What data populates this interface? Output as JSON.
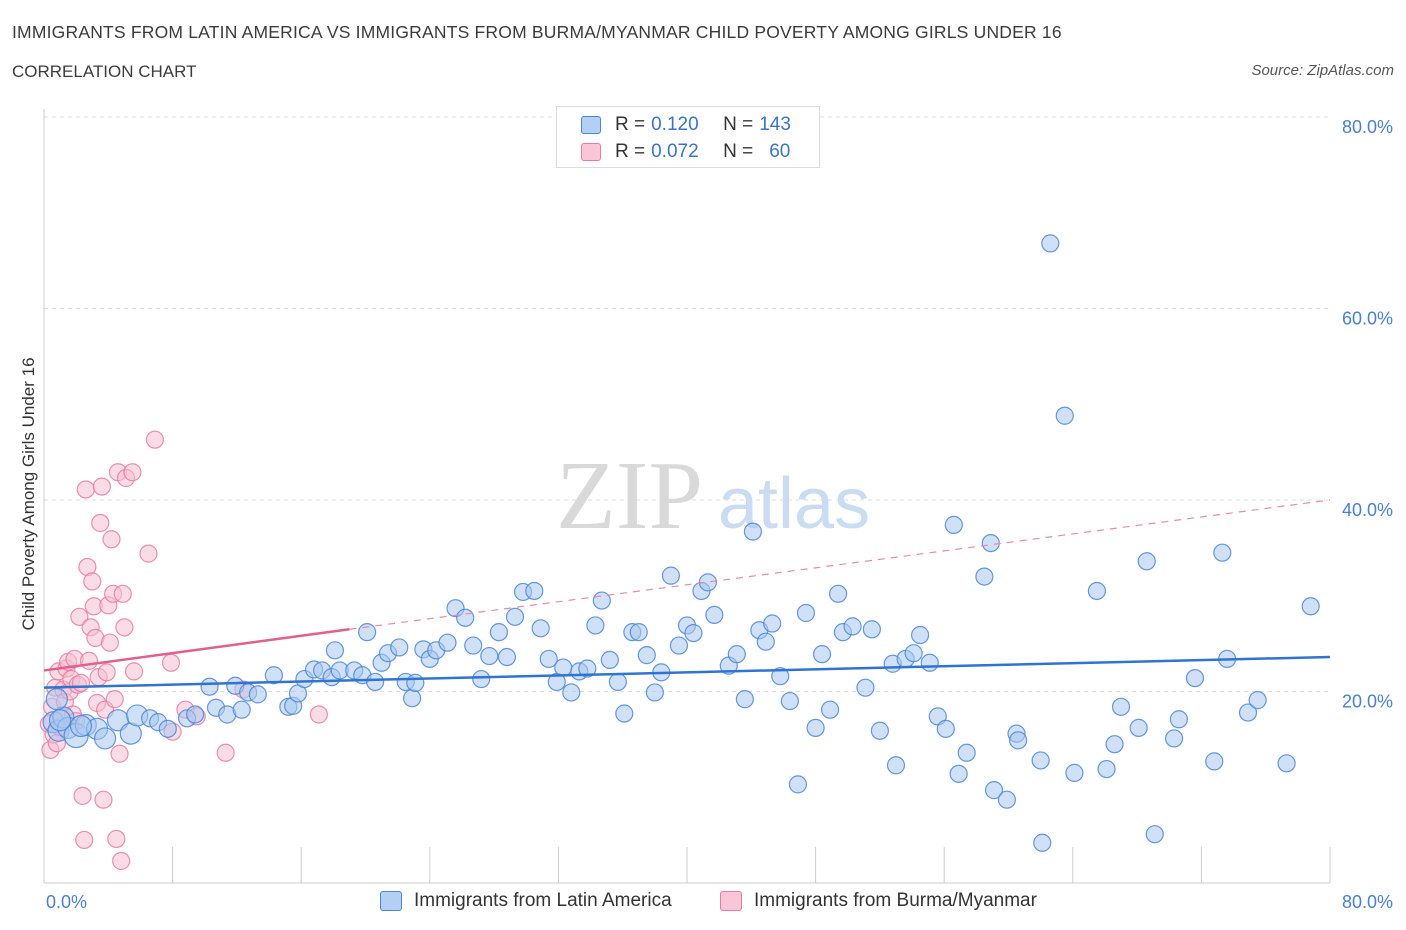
{
  "header": {
    "title": "IMMIGRANTS FROM LATIN AMERICA VS IMMIGRANTS FROM BURMA/MYANMAR CHILD POVERTY AMONG GIRLS UNDER 16",
    "subtitle": "CORRELATION CHART",
    "source": "Source: ZipAtlas.com"
  },
  "watermark": {
    "part1": "ZIP",
    "part2": "atlas"
  },
  "legend": {
    "rows": [
      {
        "r_label": "R =",
        "r_value": "0.120",
        "n_label": "N =",
        "n_value": "143"
      },
      {
        "r_label": "R =",
        "r_value": "0.072",
        "n_label": "N =",
        "n_value": "60"
      }
    ]
  },
  "colors": {
    "blue": "#4a86d8",
    "blue_fill": "#aac8f0",
    "pink": "#e87ca0",
    "pink_fill": "#f6c0d2",
    "axis_text": "#4a7fd0",
    "grid": "#d8d8d8"
  },
  "chart_data": {
    "type": "scatter",
    "title": "IMMIGRANTS FROM LATIN AMERICA VS IMMIGRANTS FROM BURMA/MYANMAR CHILD POVERTY AMONG GIRLS UNDER 16",
    "xlabel": "",
    "ylabel": "Child Poverty Among Girls Under 16",
    "xlim": [
      0,
      80
    ],
    "ylim": [
      0,
      80
    ],
    "x_tick_labels": [
      "0.0%",
      "80.0%"
    ],
    "y_ticks": [
      20,
      40,
      60,
      80
    ],
    "y_tick_labels": [
      "20.0%",
      "40.0%",
      "60.0%",
      "80.0%"
    ],
    "grid": true,
    "legend_position": "bottom",
    "series": [
      {
        "name": "Immigrants from Latin America",
        "color": "#4a86d8",
        "R": 0.12,
        "N": 143,
        "trend": {
          "x": [
            0,
            80
          ],
          "y": [
            20.4,
            23.6
          ]
        },
        "points": [
          [
            0.6,
            16.8
          ],
          [
            0.9,
            15.9
          ],
          [
            1.2,
            17.3
          ],
          [
            1.5,
            16.2
          ],
          [
            2.0,
            15.4
          ],
          [
            2.6,
            16.5
          ],
          [
            3.3,
            16.1
          ],
          [
            3.8,
            15.1
          ],
          [
            4.6,
            17.0
          ],
          [
            5.4,
            15.6
          ],
          [
            5.8,
            17.5
          ],
          [
            6.6,
            17.2
          ],
          [
            7.1,
            16.8
          ],
          [
            7.7,
            16.1
          ],
          [
            8.9,
            17.2
          ],
          [
            9.4,
            17.6
          ],
          [
            10.3,
            20.5
          ],
          [
            10.7,
            18.3
          ],
          [
            11.4,
            17.6
          ],
          [
            11.9,
            20.6
          ],
          [
            12.3,
            18.1
          ],
          [
            12.7,
            19.9
          ],
          [
            13.3,
            19.7
          ],
          [
            14.3,
            21.7
          ],
          [
            15.2,
            18.4
          ],
          [
            15.5,
            18.5
          ],
          [
            15.8,
            19.8
          ],
          [
            16.2,
            21.3
          ],
          [
            16.8,
            22.3
          ],
          [
            17.3,
            22.2
          ],
          [
            17.9,
            21.5
          ],
          [
            18.1,
            24.3
          ],
          [
            18.4,
            22.2
          ],
          [
            19.3,
            22.2
          ],
          [
            19.8,
            21.7
          ],
          [
            20.1,
            26.2
          ],
          [
            20.6,
            21.0
          ],
          [
            21.0,
            23.0
          ],
          [
            21.4,
            24.0
          ],
          [
            22.1,
            24.6
          ],
          [
            22.5,
            21.0
          ],
          [
            22.9,
            19.3
          ],
          [
            23.1,
            20.9
          ],
          [
            23.6,
            24.4
          ],
          [
            24.0,
            23.4
          ],
          [
            24.4,
            24.3
          ],
          [
            25.1,
            25.1
          ],
          [
            25.6,
            28.7
          ],
          [
            26.2,
            27.7
          ],
          [
            26.7,
            24.8
          ],
          [
            27.2,
            21.3
          ],
          [
            27.7,
            23.7
          ],
          [
            28.3,
            26.2
          ],
          [
            28.8,
            23.6
          ],
          [
            29.3,
            27.8
          ],
          [
            29.8,
            30.4
          ],
          [
            30.5,
            30.5
          ],
          [
            30.9,
            26.6
          ],
          [
            31.4,
            23.4
          ],
          [
            31.9,
            21.0
          ],
          [
            32.3,
            22.5
          ],
          [
            32.8,
            19.9
          ],
          [
            33.3,
            22.1
          ],
          [
            33.8,
            22.4
          ],
          [
            34.3,
            26.9
          ],
          [
            34.7,
            29.5
          ],
          [
            35.2,
            23.3
          ],
          [
            35.7,
            21.0
          ],
          [
            36.1,
            17.7
          ],
          [
            36.6,
            26.2
          ],
          [
            37.0,
            26.2
          ],
          [
            37.5,
            23.8
          ],
          [
            38.0,
            19.9
          ],
          [
            38.4,
            22.0
          ],
          [
            39.0,
            32.1
          ],
          [
            39.5,
            24.8
          ],
          [
            40.0,
            26.9
          ],
          [
            40.4,
            26.1
          ],
          [
            40.9,
            30.5
          ],
          [
            41.3,
            31.4
          ],
          [
            41.7,
            28.0
          ],
          [
            42.6,
            22.7
          ],
          [
            43.1,
            23.9
          ],
          [
            43.6,
            19.2
          ],
          [
            44.1,
            36.7
          ],
          [
            44.5,
            26.4
          ],
          [
            44.9,
            25.2
          ],
          [
            45.3,
            27.1
          ],
          [
            45.8,
            21.6
          ],
          [
            46.4,
            19.0
          ],
          [
            46.9,
            10.3
          ],
          [
            47.4,
            28.2
          ],
          [
            48.0,
            16.2
          ],
          [
            48.4,
            23.9
          ],
          [
            48.9,
            18.1
          ],
          [
            49.4,
            30.2
          ],
          [
            49.7,
            26.2
          ],
          [
            50.3,
            26.8
          ],
          [
            51.1,
            20.4
          ],
          [
            51.5,
            26.5
          ],
          [
            52.0,
            15.9
          ],
          [
            52.8,
            22.9
          ],
          [
            53.0,
            12.3
          ],
          [
            53.6,
            23.4
          ],
          [
            54.1,
            24.0
          ],
          [
            54.5,
            25.9
          ],
          [
            55.1,
            23.0
          ],
          [
            55.6,
            17.4
          ],
          [
            56.1,
            16.1
          ],
          [
            56.6,
            37.4
          ],
          [
            56.9,
            11.4
          ],
          [
            57.4,
            13.6
          ],
          [
            58.5,
            32.0
          ],
          [
            58.9,
            35.5
          ],
          [
            59.1,
            9.7
          ],
          [
            59.9,
            8.7
          ],
          [
            60.5,
            15.6
          ],
          [
            60.6,
            14.9
          ],
          [
            62.0,
            12.8
          ],
          [
            62.1,
            4.2
          ],
          [
            62.6,
            66.8
          ],
          [
            63.5,
            48.8
          ],
          [
            64.1,
            11.5
          ],
          [
            65.5,
            30.5
          ],
          [
            66.1,
            11.9
          ],
          [
            66.6,
            14.5
          ],
          [
            67.0,
            18.4
          ],
          [
            68.1,
            16.2
          ],
          [
            68.6,
            33.6
          ],
          [
            69.1,
            5.1
          ],
          [
            70.3,
            15.1
          ],
          [
            70.6,
            17.1
          ],
          [
            71.6,
            21.4
          ],
          [
            72.8,
            12.7
          ],
          [
            73.3,
            34.5
          ],
          [
            73.6,
            23.4
          ],
          [
            74.9,
            17.8
          ],
          [
            75.5,
            19.1
          ],
          [
            77.3,
            12.5
          ],
          [
            78.8,
            28.9
          ],
          [
            1.0,
            17.0
          ],
          [
            2.3,
            16.4
          ],
          [
            0.8,
            19.2
          ]
        ]
      },
      {
        "name": "Immigrants from Burma/Myanmar",
        "color": "#e87ca0",
        "R": 0.072,
        "N": 60,
        "trend": {
          "x": [
            0,
            19
          ],
          "y": [
            22.2,
            26.5
          ]
        },
        "trend_extension": {
          "x": [
            19,
            80
          ],
          "y": [
            26.5,
            40.0
          ]
        },
        "points": [
          [
            0.3,
            16.6
          ],
          [
            0.4,
            13.9
          ],
          [
            0.5,
            18.4
          ],
          [
            0.6,
            15.5
          ],
          [
            0.7,
            20.4
          ],
          [
            0.8,
            14.6
          ],
          [
            0.9,
            22.1
          ],
          [
            1.0,
            16.3
          ],
          [
            1.1,
            17.4
          ],
          [
            1.2,
            20.2
          ],
          [
            1.3,
            18.9
          ],
          [
            1.4,
            22.4
          ],
          [
            1.5,
            23.1
          ],
          [
            1.6,
            20.0
          ],
          [
            1.7,
            21.3
          ],
          [
            1.8,
            17.6
          ],
          [
            1.9,
            23.4
          ],
          [
            2.0,
            16.9
          ],
          [
            2.1,
            20.7
          ],
          [
            2.2,
            27.8
          ],
          [
            2.3,
            20.9
          ],
          [
            2.4,
            9.1
          ],
          [
            2.5,
            4.5
          ],
          [
            2.6,
            41.1
          ],
          [
            2.7,
            33.0
          ],
          [
            2.8,
            23.2
          ],
          [
            2.9,
            26.7
          ],
          [
            3.0,
            31.5
          ],
          [
            3.1,
            28.9
          ],
          [
            3.2,
            25.6
          ],
          [
            3.3,
            18.8
          ],
          [
            3.4,
            21.5
          ],
          [
            3.5,
            37.6
          ],
          [
            3.6,
            41.4
          ],
          [
            3.7,
            8.7
          ],
          [
            3.8,
            18.1
          ],
          [
            3.9,
            22.0
          ],
          [
            4.0,
            29.0
          ],
          [
            4.1,
            25.1
          ],
          [
            4.2,
            35.9
          ],
          [
            4.3,
            30.2
          ],
          [
            4.4,
            19.2
          ],
          [
            4.5,
            4.6
          ],
          [
            4.6,
            42.9
          ],
          [
            4.7,
            13.5
          ],
          [
            4.8,
            2.3
          ],
          [
            4.9,
            30.2
          ],
          [
            5.0,
            26.7
          ],
          [
            5.1,
            42.3
          ],
          [
            5.5,
            42.9
          ],
          [
            5.6,
            22.1
          ],
          [
            6.5,
            34.4
          ],
          [
            6.9,
            46.3
          ],
          [
            7.9,
            23.0
          ],
          [
            8.0,
            15.8
          ],
          [
            8.8,
            18.1
          ],
          [
            9.5,
            17.4
          ],
          [
            11.3,
            13.6
          ],
          [
            12.4,
            20.2
          ],
          [
            17.1,
            17.6
          ]
        ]
      }
    ]
  },
  "bottom_legend": {
    "items": [
      {
        "label": "Immigrants from Latin America"
      },
      {
        "label": "Immigrants from Burma/Myanmar"
      }
    ]
  }
}
